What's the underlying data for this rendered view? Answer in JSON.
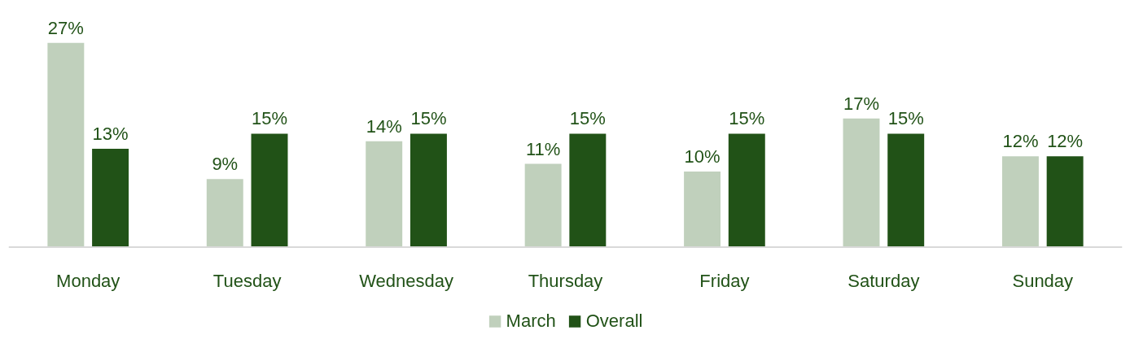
{
  "chart_data": {
    "type": "bar",
    "categories": [
      "Monday",
      "Tuesday",
      "Wednesday",
      "Thursday",
      "Friday",
      "Saturday",
      "Sunday"
    ],
    "series": [
      {
        "name": "March",
        "color": "#c0d0bc",
        "values": [
          27,
          9,
          14,
          11,
          10,
          17,
          12
        ],
        "value_labels": [
          "27%",
          "9%",
          "14%",
          "11%",
          "10%",
          "17%",
          "12%"
        ]
      },
      {
        "name": "Overall",
        "color": "#215217",
        "values": [
          13,
          15,
          15,
          15,
          15,
          15,
          12
        ],
        "value_labels": [
          "13%",
          "15%",
          "15%",
          "15%",
          "15%",
          "15%",
          "12%"
        ]
      }
    ],
    "grid": false,
    "legend": "bottom"
  }
}
